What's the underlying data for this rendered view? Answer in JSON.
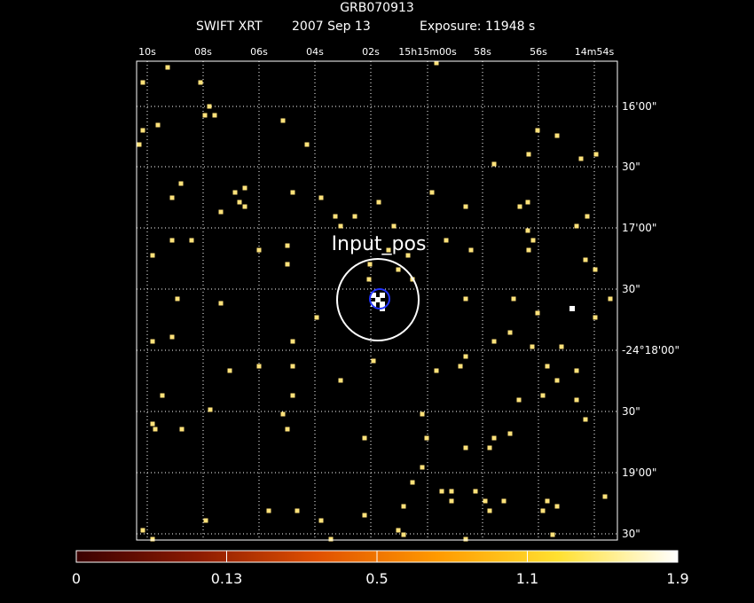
{
  "chart_data": {
    "type": "heatmap",
    "subtype": "sky-image",
    "title": "GRB070913",
    "subtitle": {
      "instrument": "SWIFT XRT",
      "date": "2007 Sep 13",
      "exposure": "Exposure: 11948 s"
    },
    "ra_ticks": [
      "10s",
      "08s",
      "06s",
      "04s",
      "02s",
      "15h15m00s",
      "58s",
      "56s",
      "14m54s"
    ],
    "dec_ticks": [
      "16'00\"",
      "30\"",
      "17'00\"",
      "30\"",
      "-24°18'00\"",
      "30\"",
      "19'00\"",
      "30\""
    ],
    "grid": true,
    "colorbar": {
      "tick_labels": [
        "0",
        "0.13",
        "0.5",
        "1.1",
        "1.9"
      ],
      "tick_values": [
        0,
        0.13,
        0.5,
        1.1,
        1.9
      ],
      "range": [
        0,
        1.9
      ],
      "colors": [
        "#3a0000",
        "#8b1a00",
        "#e05000",
        "#ff9a00",
        "#ffe030",
        "#ffffff"
      ]
    },
    "annotations": [
      {
        "label": "Input_pos",
        "shape": "circle",
        "color": "#ffffff"
      },
      {
        "shape": "circle",
        "color": "#2233ff"
      }
    ],
    "photon_counts_note": "",
    "colors": {
      "point": "#ffe27a",
      "bright": "#ffffff",
      "grid": "#ffffff",
      "axes": "#ffffff"
    }
  }
}
